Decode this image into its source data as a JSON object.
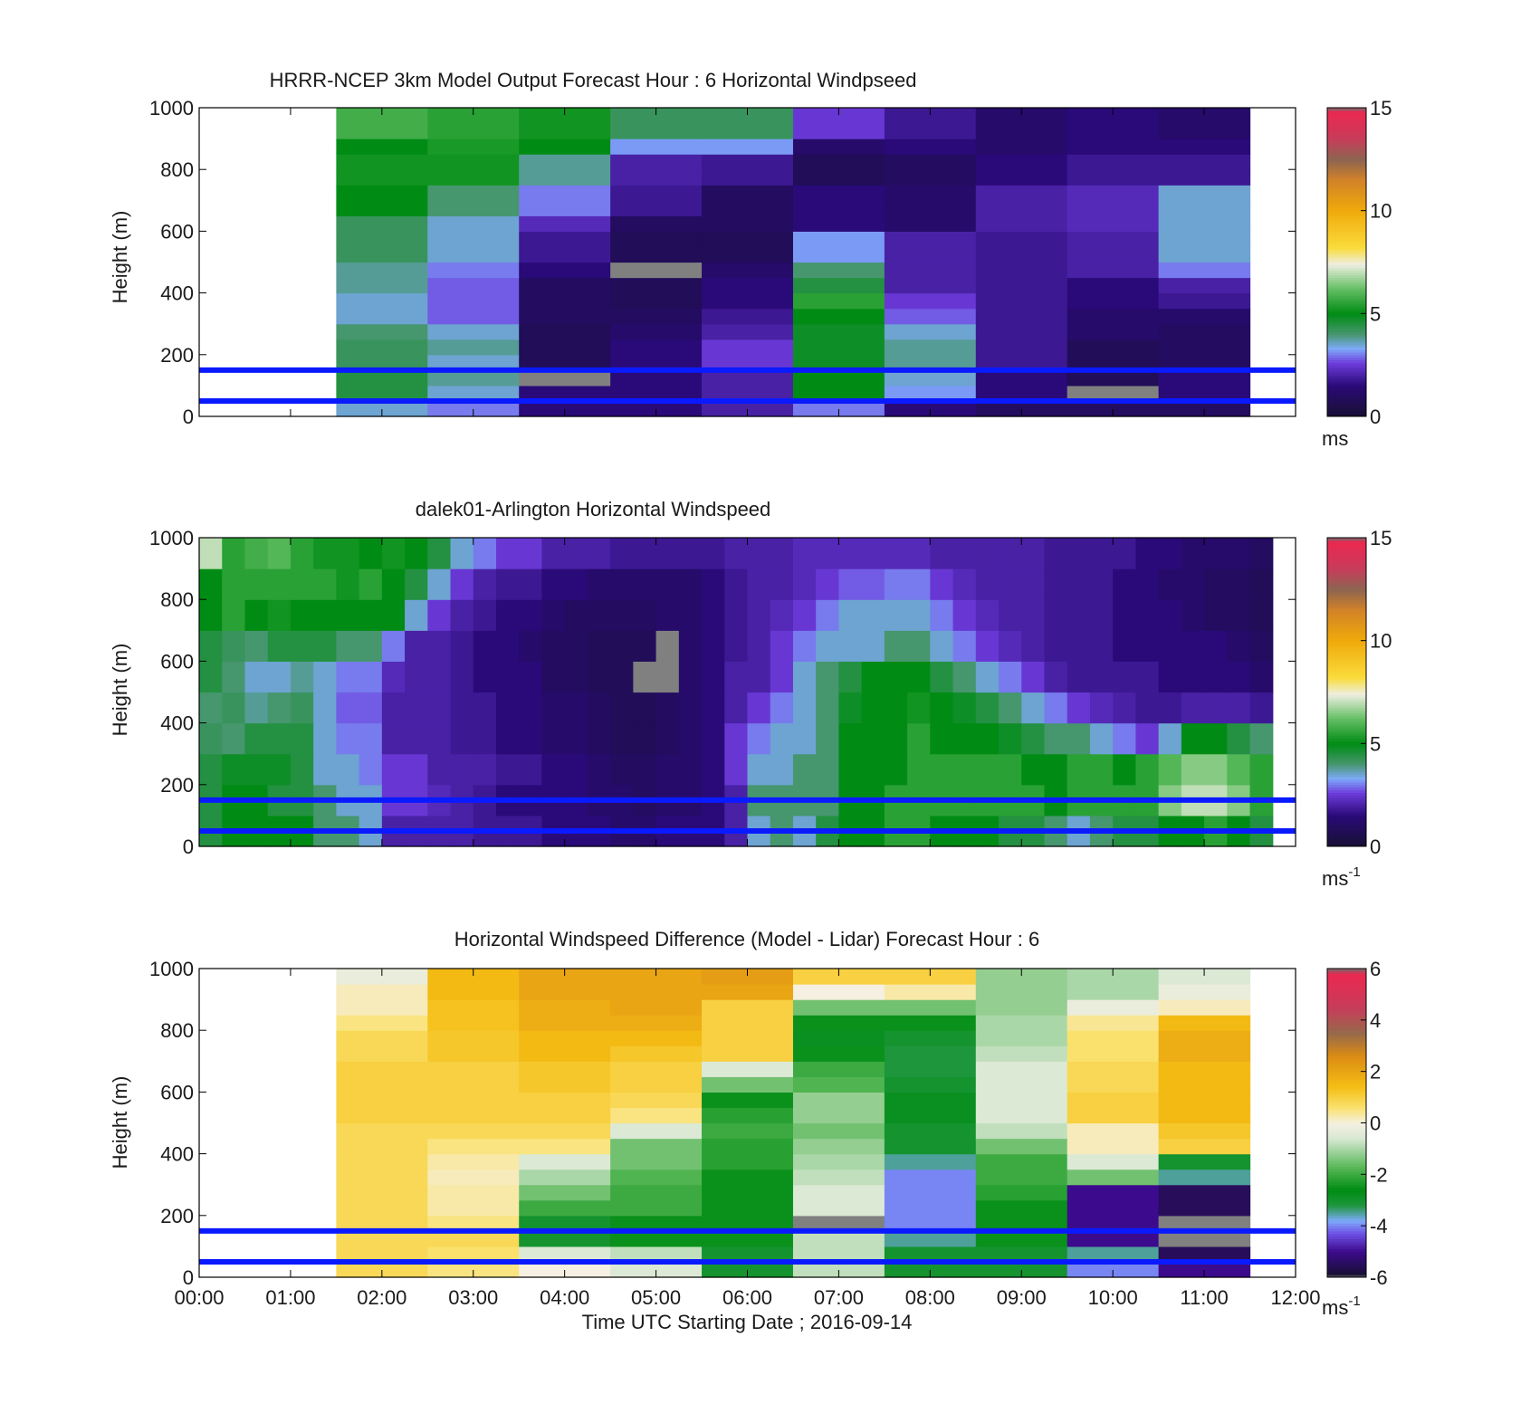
{
  "chart_data": [
    {
      "type": "heatmap",
      "id": "model",
      "title": "HRRR-NCEP 3km Model Output   Forecast Hour : 6 Horizontal Windpseed",
      "ylabel": "Height (m)",
      "xlabel": "",
      "x_tick_labels": [],
      "y_ticks": [
        0,
        200,
        400,
        600,
        800,
        1000
      ],
      "xlim_hours": [
        0,
        12
      ],
      "ylim": [
        0,
        1000
      ],
      "colorbar": {
        "ticks": [
          0,
          5,
          10,
          15
        ],
        "range": [
          0,
          15
        ],
        "unit": "ms",
        "unit_sup": ""
      },
      "reference_heights_m": [
        50,
        150
      ],
      "x_hours": [
        2,
        3,
        4,
        5,
        6,
        7,
        8,
        9,
        10,
        11
      ],
      "heights_m": [
        25,
        75,
        125,
        175,
        225,
        275,
        325,
        375,
        425,
        475,
        525,
        575,
        625,
        675,
        725,
        775,
        825,
        875,
        925,
        975
      ],
      "values": [
        [
          3.5,
          3.0,
          1.5,
          1.5,
          2.0,
          3.0,
          1.5,
          1.0,
          1.0,
          1.0
        ],
        [
          4.5,
          3.5,
          1.5,
          1.5,
          2.0,
          5.0,
          3.2,
          1.5,
          null,
          1.5
        ],
        [
          4.5,
          3.8,
          null,
          1.5,
          2.0,
          5.0,
          3.5,
          1.5,
          0.8,
          1.5
        ],
        [
          4.2,
          3.5,
          0.8,
          1.5,
          2.5,
          4.8,
          3.8,
          1.8,
          0.8,
          1.0
        ],
        [
          4.2,
          3.8,
          0.8,
          1.5,
          2.5,
          4.8,
          3.8,
          1.8,
          0.8,
          1.0
        ],
        [
          4.0,
          3.5,
          0.8,
          1.2,
          2.0,
          4.8,
          3.5,
          1.8,
          1.2,
          1.0
        ],
        [
          3.5,
          2.8,
          1.0,
          1.0,
          1.8,
          5.0,
          2.8,
          1.8,
          1.2,
          1.2
        ],
        [
          3.5,
          2.8,
          1.0,
          0.8,
          1.5,
          5.5,
          2.5,
          1.8,
          1.5,
          1.8
        ],
        [
          3.8,
          2.8,
          1.0,
          0.8,
          1.5,
          4.5,
          2.0,
          1.8,
          1.5,
          2.0
        ],
        [
          3.8,
          3.0,
          1.5,
          null,
          1.2,
          4.0,
          2.0,
          1.8,
          2.0,
          3.0
        ],
        [
          4.2,
          3.5,
          1.8,
          0.8,
          0.8,
          3.2,
          2.0,
          1.8,
          2.0,
          3.5
        ],
        [
          4.2,
          3.5,
          1.8,
          0.8,
          0.8,
          3.2,
          2.0,
          1.8,
          2.0,
          3.5
        ],
        [
          4.2,
          3.5,
          2.2,
          1.0,
          1.0,
          1.5,
          1.2,
          2.0,
          2.2,
          3.5
        ],
        [
          5.0,
          4.0,
          3.0,
          1.8,
          1.0,
          1.5,
          1.2,
          2.0,
          2.2,
          3.5
        ],
        [
          5.0,
          4.0,
          3.0,
          1.8,
          1.0,
          1.5,
          1.2,
          2.0,
          2.2,
          3.5
        ],
        [
          5.2,
          5.2,
          3.8,
          2.0,
          1.8,
          0.8,
          1.0,
          1.5,
          1.8,
          1.8
        ],
        [
          5.2,
          5.2,
          3.8,
          2.0,
          1.8,
          0.8,
          1.0,
          1.5,
          1.8,
          1.8
        ],
        [
          5.0,
          5.3,
          5.0,
          3.2,
          3.2,
          1.2,
          1.5,
          1.2,
          1.5,
          1.5
        ],
        [
          5.8,
          5.5,
          5.2,
          4.2,
          4.2,
          2.5,
          1.8,
          1.2,
          1.5,
          1.2
        ],
        [
          5.8,
          5.5,
          5.2,
          4.2,
          4.2,
          2.5,
          1.8,
          1.2,
          1.5,
          1.2
        ]
      ]
    },
    {
      "type": "heatmap",
      "id": "lidar",
      "title": "dalek01-Arlington  Horizontal Windspeed",
      "ylabel": "Height (m)",
      "xlabel": "",
      "x_tick_labels": [],
      "y_ticks": [
        0,
        200,
        400,
        600,
        800,
        1000
      ],
      "xlim_hours": [
        0,
        12
      ],
      "ylim": [
        0,
        1000
      ],
      "colorbar": {
        "ticks": [
          0,
          5,
          10,
          15
        ],
        "range": [
          0,
          15
        ],
        "unit": "ms",
        "unit_sup": "-1"
      },
      "reference_heights_m": [
        50,
        150
      ],
      "x_hours": [
        0.125,
        0.375,
        0.625,
        0.875,
        1.125,
        1.375,
        1.625,
        1.875,
        2.125,
        2.375,
        2.625,
        2.875,
        3.125,
        3.375,
        3.625,
        3.875,
        4.125,
        4.375,
        4.625,
        4.875,
        5.125,
        5.375,
        5.625,
        5.875,
        6.125,
        6.375,
        6.625,
        6.875,
        7.125,
        7.375,
        7.625,
        7.875,
        8.125,
        8.375,
        8.625,
        8.875,
        9.125,
        9.375,
        9.625,
        9.875,
        10.125,
        10.375,
        10.625,
        10.875,
        11.125,
        11.375,
        11.625
      ],
      "heights_m": [
        50,
        150,
        250,
        350,
        450,
        550,
        650,
        750,
        850,
        950
      ],
      "values": [
        [
          4.5,
          5.0,
          5.0,
          5.0,
          5.0,
          4.0,
          4.0,
          3.5,
          2.0,
          2.0,
          2.0,
          2.0,
          1.8,
          1.8,
          1.8,
          1.5,
          1.5,
          1.5,
          1.2,
          1.2,
          1.5,
          1.5,
          1.5,
          2.0,
          3.5,
          4.0,
          3.5,
          4.5,
          5.0,
          5.0,
          5.5,
          5.5,
          5.0,
          5.0,
          5.0,
          4.5,
          4.5,
          4.0,
          3.5,
          4.0,
          4.5,
          4.5,
          5.0,
          5.0,
          5.5,
          5.0,
          4.5
        ],
        [
          4.5,
          5.0,
          5.0,
          4.5,
          4.5,
          4.0,
          3.5,
          3.5,
          2.5,
          2.5,
          2.2,
          2.0,
          1.8,
          1.5,
          1.5,
          1.5,
          1.5,
          1.2,
          1.2,
          1.0,
          1.2,
          1.2,
          1.5,
          2.0,
          4.0,
          4.0,
          4.0,
          4.0,
          5.0,
          5.0,
          5.5,
          5.5,
          5.5,
          5.5,
          5.5,
          5.5,
          5.5,
          5.0,
          5.5,
          5.5,
          5.5,
          5.5,
          6.5,
          7.0,
          7.0,
          6.5,
          5.5
        ],
        [
          4.5,
          4.8,
          4.8,
          4.8,
          4.5,
          3.5,
          3.5,
          3.0,
          2.5,
          2.5,
          2.0,
          2.0,
          2.0,
          1.8,
          1.8,
          1.5,
          1.5,
          1.2,
          1.0,
          1.0,
          1.2,
          1.2,
          1.5,
          2.5,
          3.5,
          3.5,
          4.0,
          4.0,
          5.0,
          5.0,
          5.0,
          5.5,
          5.5,
          5.5,
          5.5,
          5.5,
          5.0,
          5.0,
          5.5,
          5.5,
          5.0,
          5.5,
          6.0,
          6.5,
          6.5,
          6.0,
          5.5
        ],
        [
          4.2,
          4.0,
          4.5,
          4.5,
          4.5,
          3.5,
          3.0,
          3.0,
          2.0,
          2.0,
          2.0,
          1.8,
          1.8,
          1.5,
          1.5,
          1.2,
          1.2,
          1.0,
          0.8,
          0.8,
          1.0,
          1.2,
          1.5,
          2.5,
          3.0,
          3.5,
          3.5,
          4.0,
          5.0,
          5.0,
          5.0,
          5.5,
          5.0,
          5.0,
          5.0,
          4.8,
          4.5,
          4.0,
          4.0,
          3.5,
          3.0,
          2.5,
          3.5,
          5.0,
          5.0,
          4.5,
          4.0
        ],
        [
          4.0,
          4.2,
          3.8,
          4.0,
          4.2,
          3.5,
          2.8,
          2.8,
          2.0,
          2.0,
          2.0,
          1.8,
          1.8,
          1.5,
          1.5,
          1.2,
          1.2,
          1.0,
          0.8,
          0.8,
          1.0,
          1.2,
          1.5,
          2.0,
          2.5,
          3.0,
          3.5,
          4.0,
          4.8,
          5.0,
          5.0,
          5.2,
          5.0,
          4.8,
          4.5,
          4.0,
          3.5,
          3.0,
          2.5,
          2.2,
          2.0,
          1.8,
          1.8,
          2.0,
          2.0,
          2.0,
          1.8
        ],
        [
          4.5,
          4.0,
          3.5,
          3.5,
          3.8,
          3.5,
          3.0,
          3.0,
          2.2,
          2.0,
          2.0,
          1.8,
          1.5,
          1.5,
          1.5,
          1.0,
          1.0,
          0.8,
          0.8,
          null,
          null,
          1.2,
          1.5,
          2.0,
          2.0,
          2.5,
          3.5,
          4.0,
          4.5,
          5.0,
          5.0,
          5.0,
          4.5,
          4.0,
          3.5,
          3.0,
          2.5,
          2.0,
          1.8,
          1.8,
          1.8,
          1.8,
          1.5,
          1.5,
          1.5,
          1.5,
          1.2
        ],
        [
          4.5,
          4.2,
          4.0,
          4.5,
          4.5,
          4.5,
          4.0,
          4.0,
          3.0,
          2.0,
          2.0,
          1.8,
          1.5,
          1.5,
          1.2,
          1.0,
          1.0,
          0.8,
          0.8,
          0.8,
          null,
          1.2,
          1.5,
          1.8,
          2.0,
          2.5,
          3.0,
          3.5,
          3.5,
          3.5,
          4.0,
          4.0,
          3.5,
          3.0,
          2.5,
          2.2,
          2.0,
          1.8,
          1.8,
          1.8,
          1.5,
          1.5,
          1.5,
          1.5,
          1.5,
          1.2,
          1.0
        ],
        [
          5.0,
          5.5,
          5.0,
          5.2,
          5.0,
          5.0,
          5.0,
          5.0,
          5.0,
          3.5,
          2.5,
          2.0,
          1.8,
          1.5,
          1.5,
          1.2,
          1.0,
          1.0,
          1.0,
          1.0,
          1.2,
          1.2,
          1.5,
          1.8,
          2.0,
          2.2,
          2.5,
          3.0,
          3.5,
          3.5,
          3.5,
          3.5,
          3.0,
          2.5,
          2.2,
          2.0,
          2.0,
          1.8,
          1.8,
          1.8,
          1.5,
          1.5,
          1.5,
          1.2,
          1.0,
          1.0,
          0.8
        ],
        [
          5.0,
          5.5,
          5.5,
          5.5,
          5.5,
          5.5,
          5.2,
          5.5,
          5.0,
          4.5,
          3.5,
          2.5,
          2.0,
          1.8,
          1.8,
          1.5,
          1.5,
          1.2,
          1.2,
          1.2,
          1.2,
          1.2,
          1.5,
          1.8,
          2.0,
          2.0,
          2.2,
          2.5,
          2.8,
          2.8,
          3.0,
          3.0,
          2.5,
          2.2,
          2.0,
          2.0,
          2.0,
          1.8,
          1.8,
          1.8,
          1.5,
          1.5,
          1.2,
          1.2,
          1.0,
          1.0,
          0.8
        ],
        [
          7.0,
          5.5,
          5.8,
          6.0,
          5.5,
          5.2,
          5.2,
          5.0,
          5.2,
          5.0,
          4.5,
          3.5,
          3.0,
          2.5,
          2.5,
          2.0,
          2.0,
          2.0,
          1.8,
          1.8,
          1.8,
          1.8,
          1.8,
          2.0,
          2.0,
          2.0,
          2.2,
          2.2,
          2.2,
          2.2,
          2.2,
          2.2,
          2.0,
          2.0,
          2.0,
          2.0,
          2.0,
          1.8,
          1.8,
          1.8,
          1.8,
          1.5,
          1.5,
          1.2,
          1.2,
          1.2,
          1.0
        ]
      ]
    },
    {
      "type": "heatmap",
      "id": "difference",
      "title": "Horizontal Windspeed Difference (Model - Lidar) Forecast Hour : 6",
      "ylabel": "Height (m)",
      "xlabel": "Time UTC  Starting Date ; 2016-09-14",
      "x_tick_labels": [
        "00:00",
        "01:00",
        "02:00",
        "03:00",
        "04:00",
        "05:00",
        "06:00",
        "07:00",
        "08:00",
        "09:00",
        "10:00",
        "11:00",
        "12:00"
      ],
      "y_ticks": [
        0,
        200,
        400,
        600,
        800,
        1000
      ],
      "xlim_hours": [
        0,
        12
      ],
      "ylim": [
        0,
        1000
      ],
      "colorbar": {
        "ticks": [
          -6,
          -4,
          -2,
          0,
          2,
          4,
          6
        ],
        "range": [
          -6,
          6
        ],
        "unit": "ms",
        "unit_sup": "-1"
      },
      "reference_heights_m": [
        50,
        150
      ],
      "x_hours": [
        2,
        3,
        4,
        5,
        6,
        7,
        8,
        9,
        10,
        11
      ],
      "heights_m": [
        25,
        75,
        125,
        175,
        225,
        275,
        325,
        375,
        425,
        475,
        525,
        575,
        625,
        675,
        725,
        775,
        825,
        875,
        925,
        975
      ],
      "values": [
        [
          0.8,
          0.5,
          0.0,
          -0.5,
          -3.0,
          -0.8,
          -3.0,
          -3.0,
          -4.0,
          -5.0
        ],
        [
          0.8,
          0.6,
          -0.5,
          -0.8,
          -3.0,
          -0.8,
          -3.0,
          -3.0,
          -3.5,
          -5.5
        ],
        [
          0.8,
          0.8,
          -3.0,
          -2.5,
          -2.5,
          -0.8,
          -3.5,
          -2.5,
          -5.0,
          null
        ],
        [
          0.8,
          0.5,
          -3.0,
          -2.5,
          -2.5,
          null,
          -4.0,
          -2.5,
          -5.0,
          null
        ],
        [
          0.8,
          0.3,
          -2.0,
          -2.0,
          -2.5,
          -0.5,
          -4.0,
          -2.5,
          -5.0,
          -5.5
        ],
        [
          0.8,
          0.3,
          -1.5,
          -2.0,
          -2.5,
          -0.5,
          -4.0,
          -2.2,
          -5.0,
          -5.5
        ],
        [
          0.8,
          0.2,
          -1.0,
          -1.8,
          -2.5,
          -0.8,
          -4.0,
          -2.0,
          -1.5,
          -3.5
        ],
        [
          0.8,
          0.3,
          -0.5,
          -1.5,
          -2.2,
          -1.0,
          -3.5,
          -2.0,
          -0.5,
          -3.0
        ],
        [
          0.8,
          0.5,
          0.5,
          -1.5,
          -2.2,
          -1.2,
          -3.0,
          -1.5,
          0.2,
          1.0
        ],
        [
          0.8,
          0.8,
          0.8,
          -0.5,
          -2.0,
          -1.5,
          -3.0,
          -0.8,
          0.2,
          1.2
        ],
        [
          1.0,
          1.0,
          1.0,
          0.5,
          -2.2,
          -1.2,
          -2.8,
          -0.5,
          1.0,
          1.5
        ],
        [
          1.0,
          1.0,
          1.0,
          0.8,
          -2.5,
          -1.2,
          -2.8,
          -0.5,
          1.0,
          1.5
        ],
        [
          1.0,
          1.0,
          1.2,
          1.0,
          -1.5,
          -1.8,
          -3.0,
          -0.5,
          0.8,
          1.5
        ],
        [
          1.0,
          1.0,
          1.2,
          1.0,
          -0.5,
          -2.0,
          -3.2,
          -0.5,
          0.8,
          1.5
        ],
        [
          0.8,
          1.2,
          1.5,
          1.2,
          1.0,
          -2.5,
          -3.2,
          -0.8,
          0.6,
          1.8
        ],
        [
          0.8,
          1.2,
          1.5,
          1.5,
          1.0,
          -2.8,
          -3.0,
          -1.0,
          0.6,
          1.8
        ],
        [
          0.5,
          1.3,
          1.8,
          1.8,
          1.0,
          -2.5,
          -2.5,
          -1.0,
          0.4,
          1.5
        ],
        [
          0.2,
          1.3,
          1.8,
          2.0,
          1.0,
          -1.5,
          -1.5,
          -1.2,
          -0.2,
          0.2
        ],
        [
          0.2,
          1.5,
          2.0,
          2.0,
          2.0,
          0.0,
          0.3,
          -1.2,
          -1.0,
          -0.2
        ],
        [
          -0.2,
          1.5,
          2.0,
          2.0,
          2.2,
          1.0,
          1.0,
          -1.2,
          -1.0,
          -0.5
        ]
      ]
    }
  ]
}
